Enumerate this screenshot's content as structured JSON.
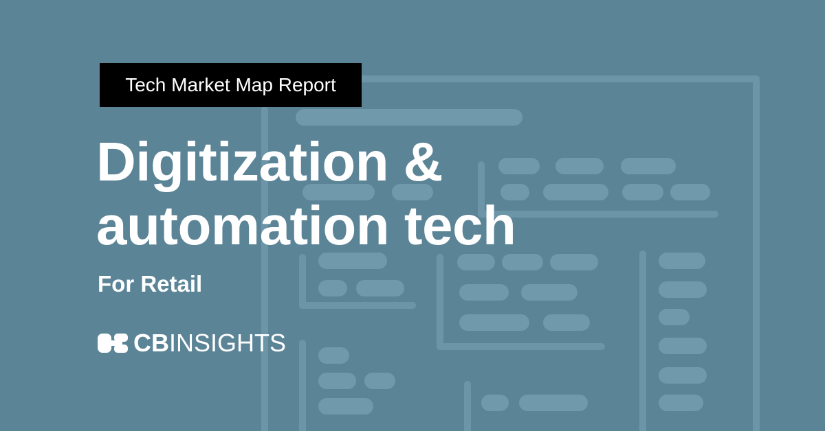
{
  "tag": "Tech Market Map Report",
  "title": {
    "line1": "Digitization &",
    "line2": "automation tech"
  },
  "subtitle": "For Retail",
  "logo": {
    "bold": "CB",
    "light": "INSIGHTS"
  }
}
